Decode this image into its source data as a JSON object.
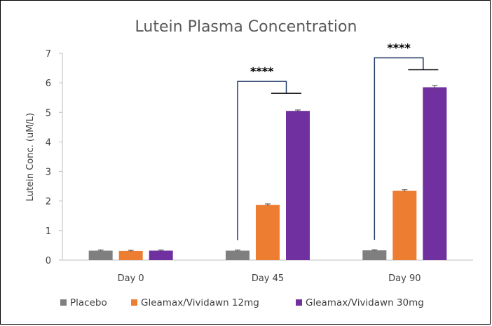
{
  "chart_data": {
    "type": "bar",
    "title": "Lutein Plasma Concentration",
    "xlabel": "",
    "ylabel": "Lutein Conc. (uM/L)",
    "categories": [
      "Day 0",
      "Day 45",
      "Day 90"
    ],
    "ylim": [
      0,
      7
    ],
    "yticks": [
      0,
      1,
      2,
      3,
      4,
      5,
      6,
      7
    ],
    "grid": false,
    "legend_position": "bottom",
    "series": [
      {
        "name": "Placebo",
        "color": "#7f7f7f",
        "values": [
          0.32,
          0.32,
          0.33
        ],
        "errors": [
          0.02,
          0.02,
          0.02
        ]
      },
      {
        "name": "Gleamax/Vividawn 12mg",
        "color": "#ed7d31",
        "values": [
          0.31,
          1.87,
          2.35
        ],
        "errors": [
          0.02,
          0.03,
          0.03
        ]
      },
      {
        "name": "Gleamax/Vividawn 30mg",
        "color": "#7030a0",
        "values": [
          0.32,
          5.05,
          5.85
        ],
        "errors": [
          0.02,
          0.03,
          0.06
        ]
      }
    ],
    "significance": [
      {
        "category": "Day 45",
        "label": "****"
      },
      {
        "category": "Day 90",
        "label": "****"
      }
    ]
  }
}
